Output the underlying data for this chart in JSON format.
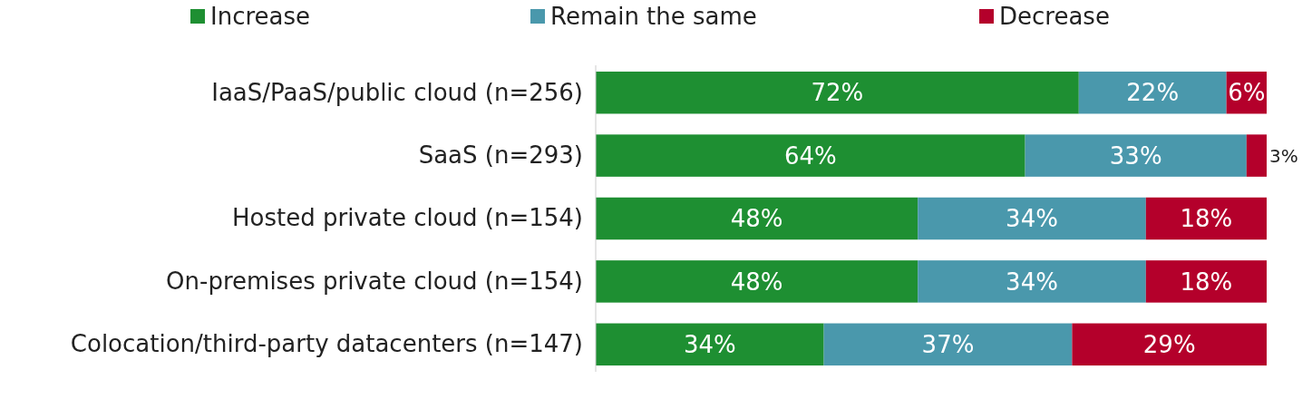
{
  "chart_data": {
    "type": "bar",
    "orientation": "horizontal",
    "stacked": true,
    "xlim": [
      0,
      100
    ],
    "tick_labels": "y",
    "legend": "top",
    "categories": [
      "IaaS/PaaS/public cloud (n=256)",
      "SaaS (n=293)",
      "Hosted private cloud (n=154)",
      "On-premises private cloud (n=154)",
      "Colocation/third-party datacenters (n=147)"
    ],
    "series": [
      {
        "name": "Increase",
        "color": "#1e8f32",
        "values": [
          72,
          64,
          48,
          48,
          34
        ],
        "value_labels": [
          "72%",
          "64%",
          "48%",
          "48%",
          "34%"
        ]
      },
      {
        "name": "Remain the same",
        "color": "#4a98ac",
        "values": [
          22,
          33,
          34,
          34,
          37
        ],
        "value_labels": [
          "22%",
          "33%",
          "34%",
          "34%",
          "37%"
        ]
      },
      {
        "name": "Decrease",
        "color": "#b4002b",
        "values": [
          6,
          3,
          18,
          18,
          29
        ],
        "value_labels": [
          "6%",
          "3%",
          "18%",
          "18%",
          "29%"
        ]
      }
    ]
  }
}
